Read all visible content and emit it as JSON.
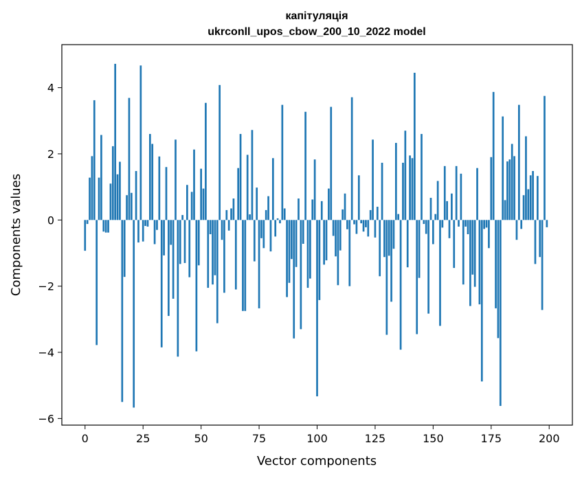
{
  "chart_data": {
    "type": "bar",
    "title": "капітуляція",
    "subtitle": "ukrconll_upos_cbow_200_10_2022 model",
    "xlabel": "Vector components",
    "ylabel": "Components values",
    "xlim": [
      -10,
      210
    ],
    "ylim": [
      -6.2,
      5.3
    ],
    "xticks": [
      0,
      25,
      50,
      75,
      100,
      125,
      150,
      175,
      200
    ],
    "xtick_labels": [
      "0",
      "25",
      "50",
      "75",
      "100",
      "125",
      "150",
      "175",
      "200"
    ],
    "yticks": [
      -6,
      -4,
      -2,
      0,
      2,
      4
    ],
    "ytick_labels": [
      "−6",
      "−4",
      "−2",
      "0",
      "2",
      "4"
    ],
    "grid": false,
    "bar_color": "#1f77b4",
    "x": [
      0,
      1,
      2,
      3,
      4,
      5,
      6,
      7,
      8,
      9,
      10,
      11,
      12,
      13,
      14,
      15,
      16,
      17,
      18,
      19,
      20,
      21,
      22,
      23,
      24,
      25,
      26,
      27,
      28,
      29,
      30,
      31,
      32,
      33,
      34,
      35,
      36,
      37,
      38,
      39,
      40,
      41,
      42,
      43,
      44,
      45,
      46,
      47,
      48,
      49,
      50,
      51,
      52,
      53,
      54,
      55,
      56,
      57,
      58,
      59,
      60,
      61,
      62,
      63,
      64,
      65,
      66,
      67,
      68,
      69,
      70,
      71,
      72,
      73,
      74,
      75,
      76,
      77,
      78,
      79,
      80,
      81,
      82,
      83,
      84,
      85,
      86,
      87,
      88,
      89,
      90,
      91,
      92,
      93,
      94,
      95,
      96,
      97,
      98,
      99,
      100,
      101,
      102,
      103,
      104,
      105,
      106,
      107,
      108,
      109,
      110,
      111,
      112,
      113,
      114,
      115,
      116,
      117,
      118,
      119,
      120,
      121,
      122,
      123,
      124,
      125,
      126,
      127,
      128,
      129,
      130,
      131,
      132,
      133,
      134,
      135,
      136,
      137,
      138,
      139,
      140,
      141,
      142,
      143,
      144,
      145,
      146,
      147,
      148,
      149,
      150,
      151,
      152,
      153,
      154,
      155,
      156,
      157,
      158,
      159,
      160,
      161,
      162,
      163,
      164,
      165,
      166,
      167,
      168,
      169,
      170,
      171,
      172,
      173,
      174,
      175,
      176,
      177,
      178,
      179,
      180,
      181,
      182,
      183,
      184,
      185,
      186,
      187,
      188,
      189,
      190,
      191,
      192,
      193,
      194,
      195,
      196,
      197,
      198,
      199
    ],
    "values": [
      -0.93,
      -0.12,
      1.28,
      1.93,
      3.62,
      -3.78,
      1.28,
      2.57,
      -0.35,
      -0.38,
      -0.38,
      1.1,
      2.23,
      4.72,
      1.38,
      1.76,
      -5.5,
      -1.72,
      0.75,
      3.69,
      0.82,
      -5.67,
      1.48,
      -0.68,
      4.67,
      -0.65,
      -0.18,
      -0.2,
      2.6,
      2.3,
      -0.73,
      -0.3,
      1.92,
      -3.85,
      -1.07,
      1.6,
      -2.9,
      -0.75,
      -2.38,
      2.43,
      -4.13,
      -1.33,
      0.15,
      -1.3,
      1.06,
      -1.73,
      0.85,
      2.13,
      -3.97,
      -1.37,
      1.55,
      0.95,
      3.54,
      -2.05,
      -0.43,
      -1.95,
      -1.67,
      -3.12,
      4.08,
      -0.6,
      -2.2,
      0.3,
      -0.32,
      0.35,
      0.65,
      -2.1,
      1.57,
      2.6,
      -2.75,
      -2.75,
      1.97,
      0.17,
      2.72,
      -1.25,
      0.98,
      -2.67,
      -0.55,
      -0.85,
      0.3,
      0.72,
      -0.95,
      1.87,
      -0.5,
      0.05,
      -0.1,
      3.48,
      0.35,
      -2.33,
      -1.9,
      -1.18,
      -3.58,
      -1.42,
      0.65,
      -3.3,
      -0.72,
      3.27,
      -2.05,
      -1.77,
      0.62,
      1.83,
      -5.33,
      -2.42,
      0.57,
      -1.35,
      -1.22,
      0.95,
      3.42,
      -0.48,
      -1.1,
      -1.97,
      -0.92,
      0.32,
      0.8,
      -0.28,
      -2.0,
      3.71,
      -0.13,
      -0.42,
      1.35,
      -0.1,
      -0.35,
      -0.22,
      -0.5,
      0.3,
      2.43,
      -0.53,
      0.4,
      -1.7,
      1.73,
      -1.12,
      -3.47,
      -1.08,
      -2.47,
      -0.87,
      2.33,
      0.18,
      -3.92,
      1.73,
      2.7,
      -1.43,
      1.95,
      1.87,
      4.45,
      -3.45,
      -1.75,
      2.6,
      -0.12,
      -0.42,
      -2.83,
      0.67,
      -0.73,
      0.18,
      1.18,
      -3.2,
      -0.23,
      1.63,
      0.57,
      -0.55,
      0.8,
      -1.45,
      1.63,
      -0.2,
      1.4,
      -1.95,
      -0.2,
      -0.43,
      -2.6,
      -1.65,
      -2.02,
      1.57,
      -2.55,
      -4.88,
      -0.27,
      -0.23,
      -0.85,
      1.9,
      3.87,
      -2.67,
      -3.57,
      -5.62,
      3.13,
      0.6,
      1.77,
      1.83,
      2.3,
      1.93,
      -0.6,
      3.48,
      -0.27,
      0.75,
      2.53,
      0.93,
      1.35,
      1.48,
      -1.33,
      1.33,
      -1.12,
      -2.72,
      3.75,
      -0.22
    ]
  }
}
